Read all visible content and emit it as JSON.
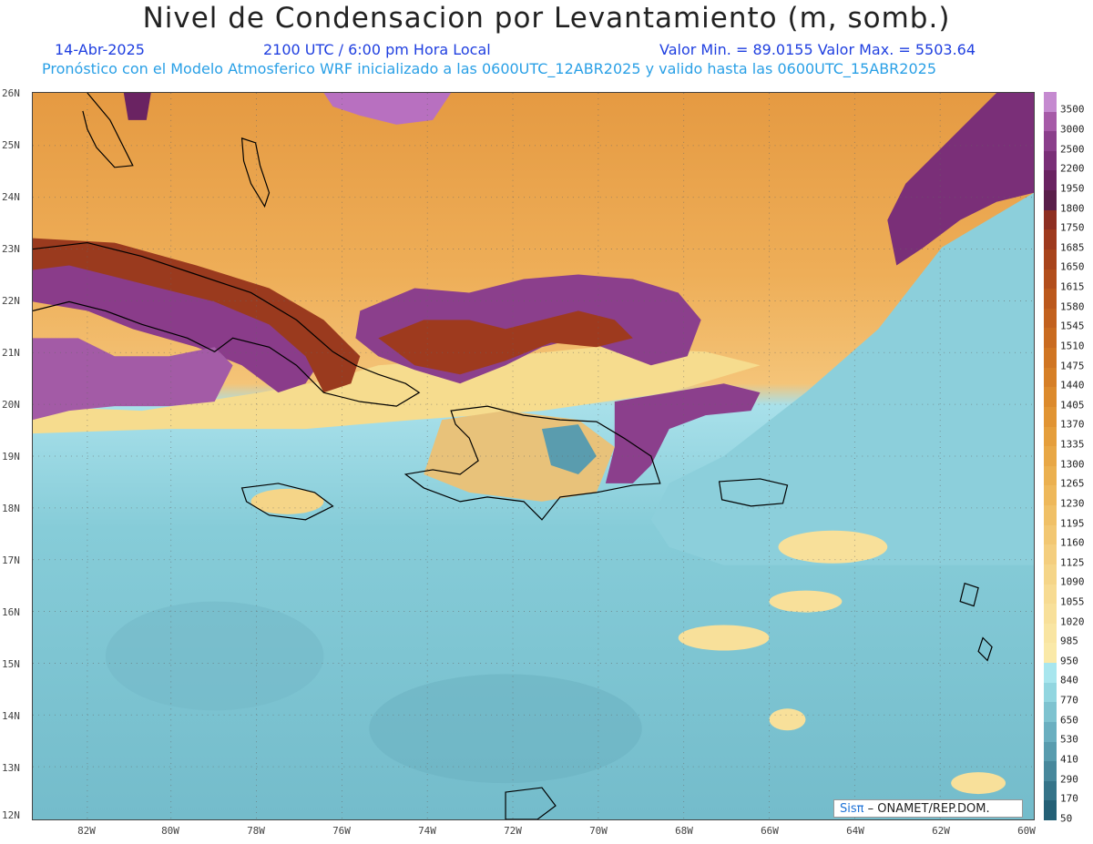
{
  "header": {
    "title": "Nivel de Condensacion por Levantamiento (m, somb.)",
    "date": "14-Abr-2025",
    "time": "2100 UTC / 6:00 pm Hora Local",
    "minmax": "Valor Min. = 89.0155  Valor Max. = 5503.64",
    "forecast": "Pronóstico con el Modelo Atmosferico WRF inicializado a las 0600UTC_12ABR2025 y valido hasta las  0600UTC_15ABR2025"
  },
  "axes": {
    "lat_labels": [
      "26N",
      "25N",
      "24N",
      "23N",
      "22N",
      "21N",
      "20N",
      "19N",
      "18N",
      "17N",
      "16N",
      "15N",
      "14N",
      "13N",
      "12N"
    ],
    "lon_labels": [
      "82W",
      "80W",
      "78W",
      "76W",
      "74W",
      "72W",
      "70W",
      "68W",
      "66W",
      "64W",
      "62W",
      "60W"
    ]
  },
  "colorbar": {
    "labels": [
      "3500",
      "3000",
      "2500",
      "2200",
      "1950",
      "1800",
      "1750",
      "1685",
      "1650",
      "1615",
      "1580",
      "1545",
      "1510",
      "1475",
      "1440",
      "1405",
      "1370",
      "1335",
      "1300",
      "1265",
      "1230",
      "1195",
      "1160",
      "1125",
      "1090",
      "1055",
      "1020",
      "985",
      "950",
      "840",
      "770",
      "650",
      "530",
      "410",
      "290",
      "170",
      "50"
    ],
    "colors": [
      "#c58ad0",
      "#a65aa8",
      "#8b3f8c",
      "#7a2f78",
      "#6a2362",
      "#5a1f4a",
      "#8e2f22",
      "#9e3a1e",
      "#a8441c",
      "#b24e1c",
      "#bb581c",
      "#c2611e",
      "#c96b20",
      "#d07522",
      "#d67f26",
      "#dc8a2c",
      "#e19433",
      "#e59e3b",
      "#e8a745",
      "#ebb04f",
      "#eeb85a",
      "#f0c066",
      "#f2c772",
      "#f4ce7e",
      "#f5d588",
      "#f7db92",
      "#f8e09a",
      "#f9e5a2",
      "#fae9a8",
      "#a8e6ee",
      "#92d6e0",
      "#7ec3d0",
      "#6aafc0",
      "#589cae",
      "#47889c",
      "#357489",
      "#246076"
    ],
    "credit_brand": "Sisπ",
    "credit_org": " – ONAMET/REP.DOM."
  },
  "map": {
    "bg_high": "#e8a24a",
    "bg_low": "#86cad6",
    "coast_color": "#000000"
  }
}
